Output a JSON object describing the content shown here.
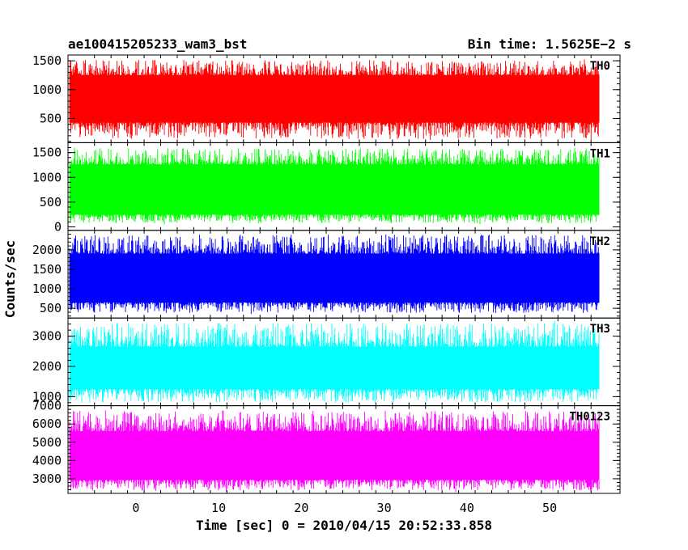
{
  "header": {
    "title": "ae100415205233_wam3_bst",
    "bin_time": "Bin time: 1.5625E−2 s"
  },
  "chart_data": {
    "type": "line",
    "xlabel": "Time [sec] 0 = 2010/04/15 20:52:33.858",
    "ylabel": "Counts/sec",
    "xlim": [
      -8.2,
      58.5
    ],
    "x_range": [
      -8.0,
      56.0
    ],
    "x_ticks": [
      0,
      10,
      20,
      30,
      40,
      50
    ],
    "bin_time_s": 0.015625,
    "panels": [
      {
        "name": "TH0",
        "color": "#ff0000",
        "ylim": [
          80,
          1600
        ],
        "y_ticks": [
          500,
          1000,
          1500
        ],
        "band_low": 430,
        "band_high": 1250,
        "peak_min": 90,
        "peak_max": 1560
      },
      {
        "name": "TH1",
        "color": "#00ff00",
        "ylim": [
          -70,
          1700
        ],
        "y_ticks": [
          0,
          500,
          1000,
          1500
        ],
        "band_low": 250,
        "band_high": 1260,
        "peak_min": 40,
        "peak_max": 1650
      },
      {
        "name": "TH2",
        "color": "#0000ff",
        "ylim": [
          250,
          2500
        ],
        "y_ticks": [
          500,
          1000,
          1500,
          2000
        ],
        "band_low": 650,
        "band_high": 1900,
        "peak_min": 330,
        "peak_max": 2480
      },
      {
        "name": "TH3",
        "color": "#00ffff",
        "ylim": [
          700,
          3600
        ],
        "y_ticks": [
          1000,
          2000,
          3000
        ],
        "band_low": 1250,
        "band_high": 2650,
        "peak_min": 720,
        "peak_max": 3580
      },
      {
        "name": "TH0123",
        "color": "#ff00ff",
        "ylim": [
          2200,
          7000
        ],
        "y_ticks": [
          3000,
          4000,
          5000,
          6000,
          7000
        ],
        "band_low": 2950,
        "band_high": 5600,
        "peak_min": 2250,
        "peak_max": 6950
      }
    ]
  }
}
